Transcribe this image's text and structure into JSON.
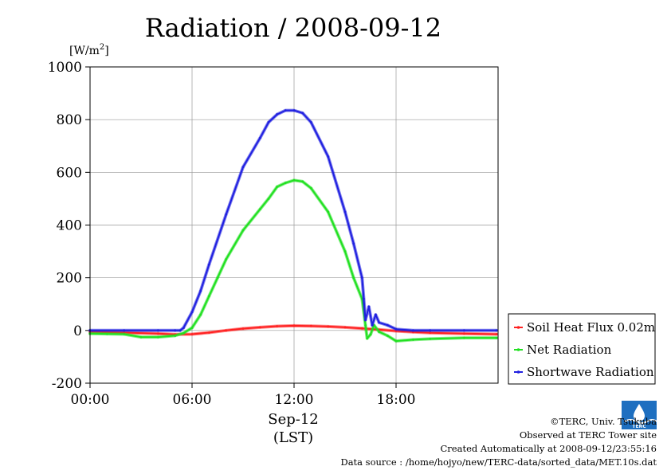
{
  "chart_data": {
    "type": "line",
    "title": "Radiation / 2008-09-12",
    "ylabel": "[W/m²]",
    "ylabel_main": "[W/m",
    "ylabel_sup": "2",
    "ylabel_end": "]",
    "xlabel_date": "Sep-12",
    "xlabel": "(LST)",
    "ylim": [
      -200,
      1000
    ],
    "xlim": [
      0,
      24
    ],
    "yticks": [
      -200,
      0,
      200,
      400,
      600,
      800,
      1000
    ],
    "xticks": [
      0,
      6,
      12,
      18
    ],
    "xtick_labels": [
      "00:00",
      "06:00",
      "12:00",
      "18:00"
    ],
    "grid": true,
    "legend_position": "right",
    "series": [
      {
        "name": "Soil Heat Flux 0.02m",
        "color": "#ff2020",
        "x": [
          0,
          2,
          4,
          5,
          6,
          7,
          8,
          9,
          10,
          11,
          12,
          13,
          14,
          15,
          16,
          17,
          18,
          19,
          20,
          22,
          23.9
        ],
        "values": [
          -5,
          -8,
          -12,
          -15,
          -14,
          -8,
          0,
          7,
          12,
          16,
          18,
          17,
          15,
          12,
          8,
          3,
          -2,
          -6,
          -9,
          -12,
          -14
        ]
      },
      {
        "name": "Net Radiation",
        "color": "#20e020",
        "x": [
          0,
          1,
          2,
          3,
          4,
          5,
          5.5,
          6,
          6.5,
          7,
          7.5,
          8,
          9,
          10,
          10.5,
          11,
          11.5,
          12,
          12.5,
          13,
          14,
          15,
          15.5,
          16,
          16.2,
          16.3,
          16.5,
          16.7,
          17,
          17.5,
          18,
          19,
          20,
          22,
          23.9
        ],
        "values": [
          -12,
          -13,
          -14,
          -25,
          -25,
          -20,
          -10,
          10,
          60,
          130,
          200,
          270,
          380,
          460,
          500,
          545,
          560,
          570,
          565,
          540,
          450,
          300,
          200,
          120,
          20,
          -30,
          -15,
          20,
          -5,
          -20,
          -40,
          -35,
          -32,
          -28,
          -28
        ]
      },
      {
        "name": "Shortwave Radiation",
        "color": "#2020e0",
        "x": [
          0,
          2,
          4,
          5,
          5.3,
          5.5,
          6,
          6.5,
          7,
          8,
          9,
          10,
          10.5,
          11,
          11.5,
          12,
          12.5,
          13,
          14,
          15,
          15.5,
          16,
          16.1,
          16.2,
          16.4,
          16.6,
          16.8,
          17,
          17.5,
          18,
          19,
          20,
          22,
          23.9
        ],
        "values": [
          0,
          0,
          0,
          0,
          0,
          10,
          70,
          150,
          250,
          440,
          620,
          730,
          790,
          820,
          835,
          835,
          825,
          790,
          660,
          450,
          330,
          200,
          120,
          40,
          90,
          20,
          60,
          30,
          20,
          5,
          0,
          0,
          0,
          0
        ]
      }
    ]
  },
  "footer": {
    "copyright": "©TERC, Univ. Tsukuba",
    "site": "Observed at TERC Tower site",
    "created": "Created Automatically at 2008-09-12/23:55:16",
    "source": "Data source : /home/hojyo/new/TERC-data/sorted_data/MET.10s.dat",
    "logo_text": "TERC"
  }
}
